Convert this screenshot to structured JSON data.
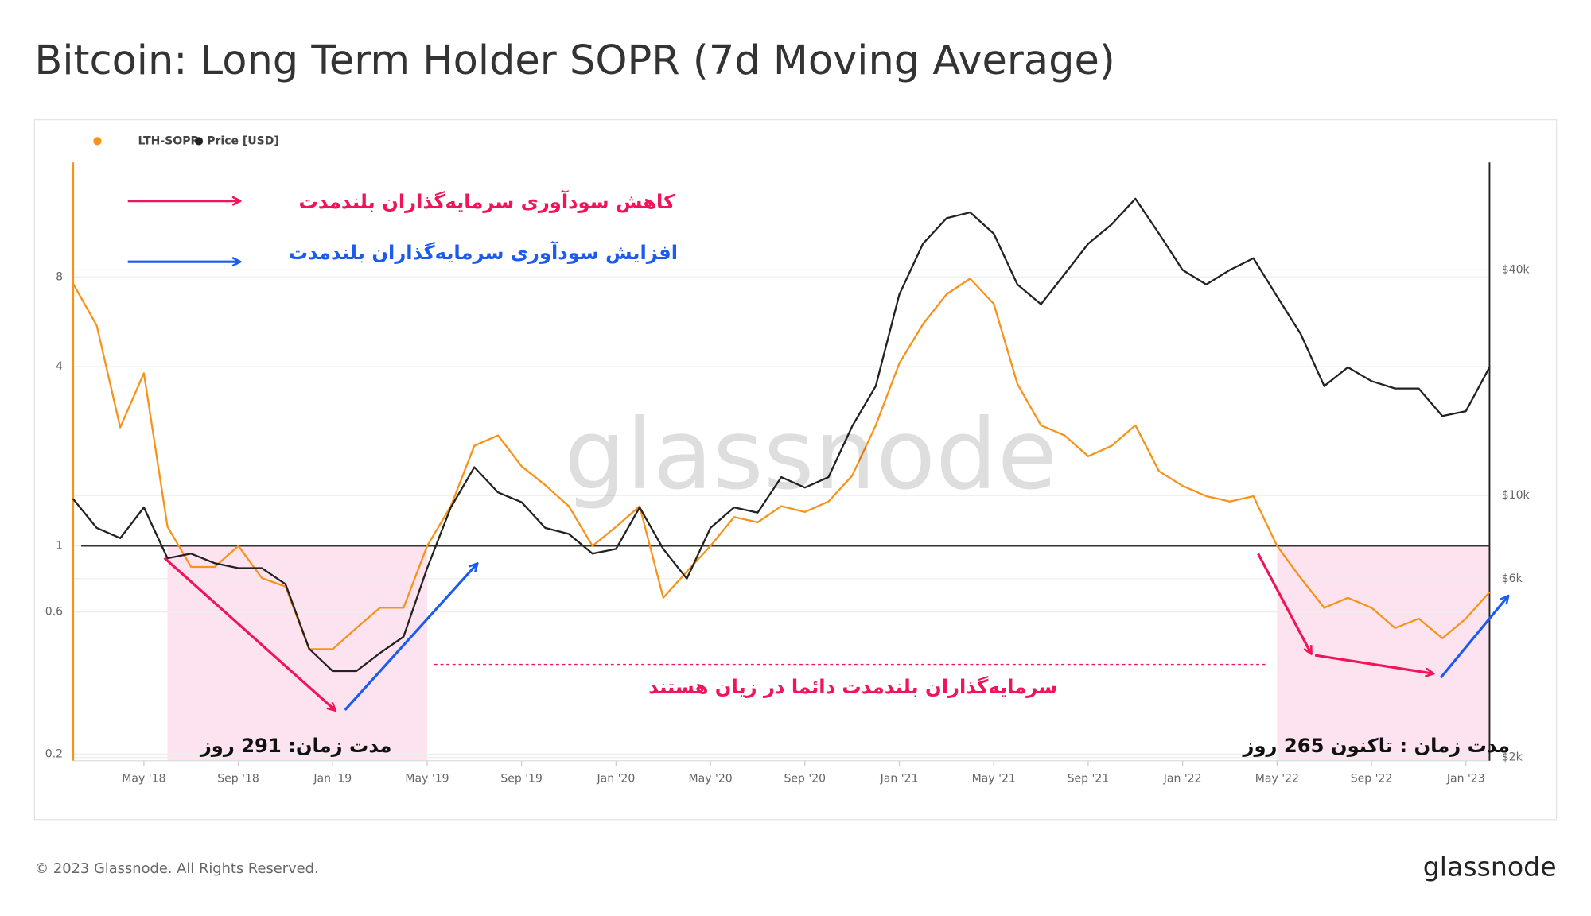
{
  "chart_data": {
    "type": "line",
    "title": "Bitcoin: Long Term Holder SOPR (7d Moving Average)",
    "x": [
      "2018-02",
      "2018-03",
      "2018-04",
      "2018-05",
      "2018-06",
      "2018-07",
      "2018-08",
      "2018-09",
      "2018-10",
      "2018-11",
      "2018-12",
      "2019-01",
      "2019-02",
      "2019-03",
      "2019-04",
      "2019-05",
      "2019-06",
      "2019-07",
      "2019-08",
      "2019-09",
      "2019-10",
      "2019-11",
      "2019-12",
      "2020-01",
      "2020-02",
      "2020-03",
      "2020-04",
      "2020-05",
      "2020-06",
      "2020-07",
      "2020-08",
      "2020-09",
      "2020-10",
      "2020-11",
      "2020-12",
      "2021-01",
      "2021-02",
      "2021-03",
      "2021-04",
      "2021-05",
      "2021-06",
      "2021-07",
      "2021-08",
      "2021-09",
      "2021-10",
      "2021-11",
      "2021-12",
      "2022-01",
      "2022-02",
      "2022-03",
      "2022-04",
      "2022-05",
      "2022-06",
      "2022-07",
      "2022-08",
      "2022-09",
      "2022-10",
      "2022-11",
      "2022-12",
      "2023-01",
      "2023-02"
    ],
    "series": [
      {
        "name": "LTH-SOPR",
        "color": "#f7931a",
        "values": [
          7.6,
          5.5,
          2.5,
          3.8,
          1.16,
          0.85,
          0.85,
          1.0,
          0.78,
          0.73,
          0.45,
          0.45,
          0.53,
          0.62,
          0.62,
          1.0,
          1.36,
          2.17,
          2.35,
          1.85,
          1.6,
          1.36,
          1.0,
          1.16,
          1.36,
          0.67,
          0.82,
          1.0,
          1.25,
          1.2,
          1.36,
          1.3,
          1.41,
          1.72,
          2.54,
          4.1,
          5.55,
          7.0,
          7.9,
          6.5,
          3.5,
          2.54,
          2.35,
          2.0,
          2.17,
          2.54,
          1.78,
          1.59,
          1.47,
          1.41,
          1.47,
          1.0,
          0.78,
          0.62,
          0.67,
          0.62,
          0.53,
          0.57,
          0.49,
          0.57,
          0.7
        ]
      },
      {
        "name": "Price [USD]",
        "color": "#222222",
        "axis": "y2",
        "values": [
          9800,
          8200,
          7700,
          9300,
          6800,
          7000,
          6600,
          6400,
          6400,
          5800,
          3900,
          3400,
          3400,
          3800,
          4200,
          6400,
          9300,
          11900,
          10200,
          9600,
          8200,
          7900,
          7000,
          7200,
          9300,
          7200,
          6000,
          8200,
          9300,
          9000,
          11200,
          10500,
          11200,
          15300,
          19600,
          34400,
          47000,
          55000,
          57000,
          50000,
          36600,
          32400,
          39000,
          47000,
          53000,
          62000,
          50000,
          40000,
          36600,
          40000,
          43000,
          34000,
          27000,
          19600,
          22000,
          20200,
          19300,
          19300,
          16300,
          16800,
          22000
        ]
      }
    ],
    "xlim": [
      "2018-02",
      "2023-02"
    ],
    "xticks": [
      {
        "value": "2018-05",
        "label": "May '18"
      },
      {
        "value": "2018-09",
        "label": "Sep '18"
      },
      {
        "value": "2019-01",
        "label": "Jan '19"
      },
      {
        "value": "2019-05",
        "label": "May '19"
      },
      {
        "value": "2019-09",
        "label": "Sep '19"
      },
      {
        "value": "2020-01",
        "label": "Jan '20"
      },
      {
        "value": "2020-05",
        "label": "May '20"
      },
      {
        "value": "2020-09",
        "label": "Sep '20"
      },
      {
        "value": "2021-01",
        "label": "Jan '21"
      },
      {
        "value": "2021-05",
        "label": "May '21"
      },
      {
        "value": "2021-09",
        "label": "Sep '21"
      },
      {
        "value": "2022-01",
        "label": "Jan '22"
      },
      {
        "value": "2022-05",
        "label": "May '22"
      },
      {
        "value": "2022-09",
        "label": "Sep '22"
      },
      {
        "value": "2023-01",
        "label": "Jan '23"
      }
    ],
    "ylim": [
      0.19,
      19.4
    ],
    "ylog": true,
    "yticks": [
      0.2,
      0.6,
      1,
      4,
      8
    ],
    "y2lim": [
      1960,
      77500
    ],
    "y2log": true,
    "y2ticks": [
      {
        "value": 2000,
        "label": "$2k"
      },
      {
        "value": 6000,
        "label": "$6k"
      },
      {
        "value": 10000,
        "label": "$10k"
      },
      {
        "value": 40000,
        "label": "$40k"
      }
    ],
    "grid": true,
    "reference_line": 1,
    "highlight_ranges": [
      [
        "2018-06",
        "2019-05"
      ],
      [
        "2022-05",
        "2023-02"
      ]
    ],
    "annotations": {
      "decline": "کاهش سودآوری سرمایه‌گذاران بلندمدت",
      "rise": "افزایش سودآوری سرمایه‌گذاران بلندمدت",
      "loss": "سرمایه‌گذاران بلندمدت دائما در زیان هستند",
      "duration_1": "مدت زمان: 291 روز",
      "duration_2": "مدت زمان : تاکنون 265 روز"
    },
    "watermark": "glassnode"
  },
  "footer": {
    "copyright": "© 2023 Glassnode. All Rights Reserved.",
    "brand": "glassnode"
  }
}
